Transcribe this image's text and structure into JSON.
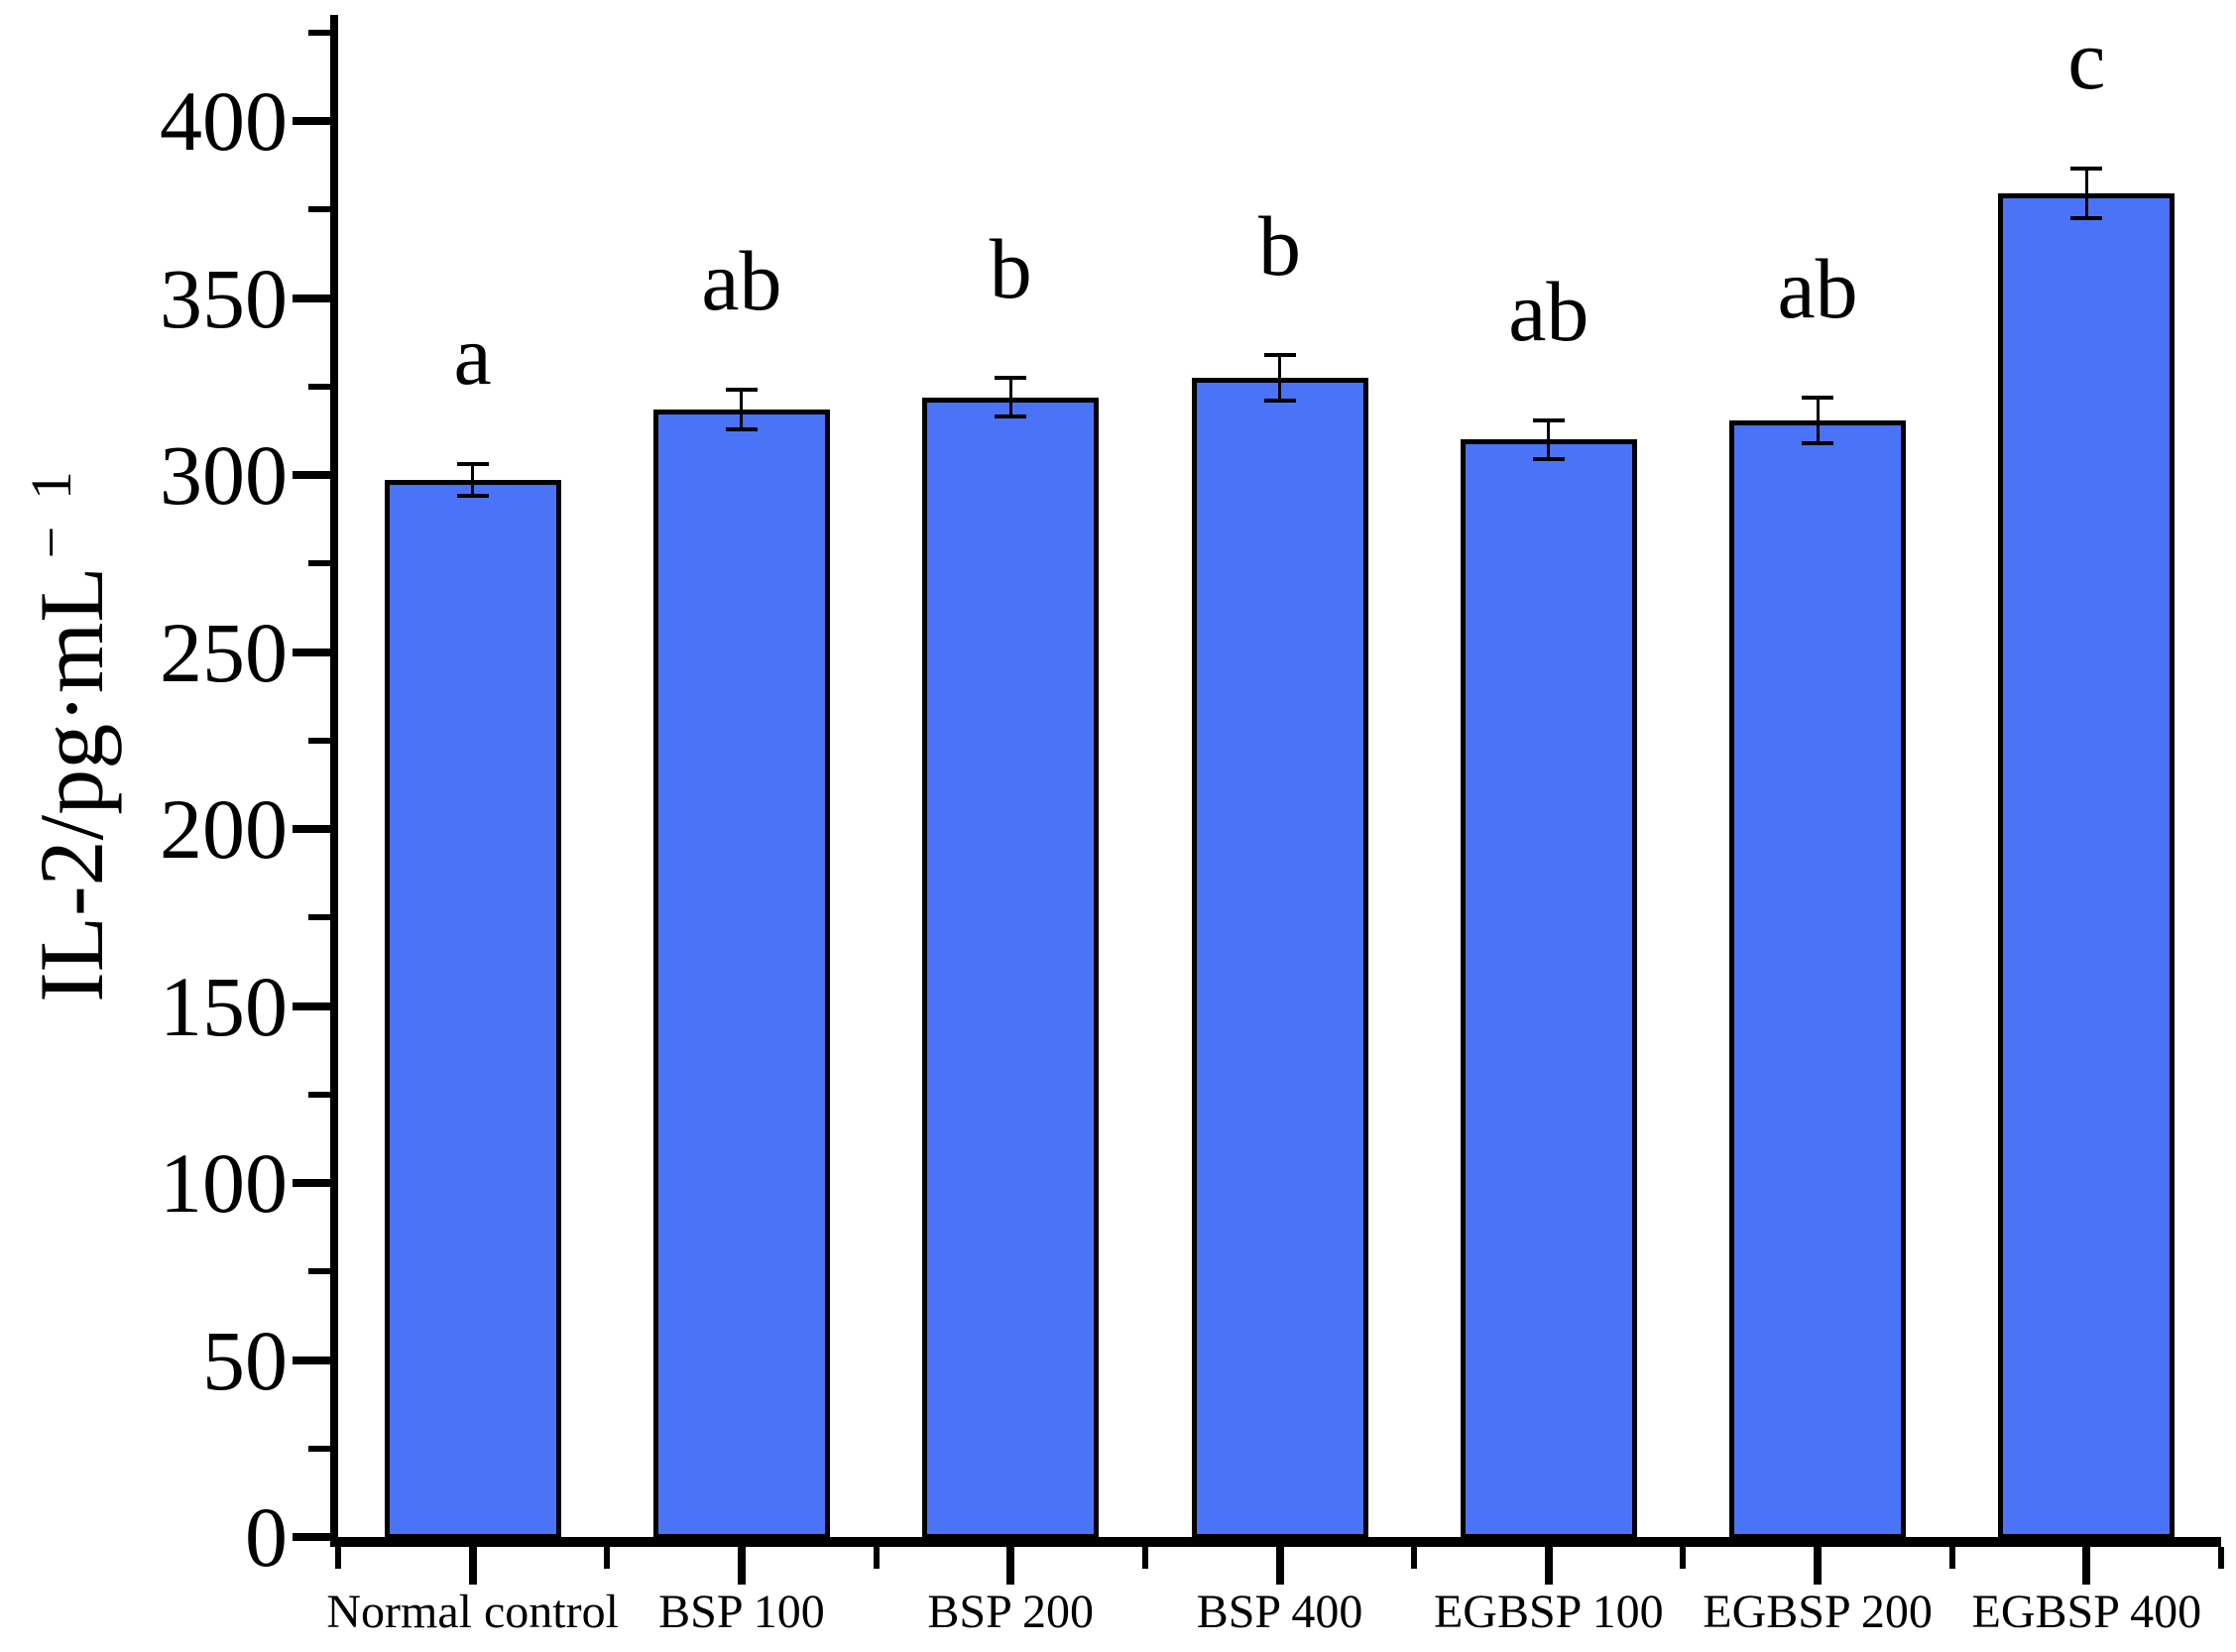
{
  "chart_data": {
    "type": "bar",
    "title": "",
    "ylabel": "IL-2/pg·mL⁻¹",
    "ylabel_base": "IL-2/pg·mL",
    "ylabel_sup": "− 1",
    "xlabel": "",
    "categories": [
      "Normal control",
      "BSP 100",
      "BSP 200",
      "BSP 400",
      "EGBSP 100",
      "EGBSP 200",
      "EGBSP 400"
    ],
    "values": [
      298.5,
      318.5,
      322,
      327.5,
      310,
      315.5,
      379.5
    ],
    "errors": [
      4.5,
      5.5,
      5.5,
      6.5,
      5.5,
      6.5,
      7
    ],
    "sig_letters": [
      "a",
      "ab",
      "b",
      "b",
      "ab",
      "ab",
      "c"
    ],
    "yticks": [
      0,
      50,
      100,
      150,
      200,
      250,
      300,
      350,
      400
    ],
    "ytick_labels": [
      "0",
      "50",
      "100",
      "150",
      "200",
      "250",
      "300",
      "350",
      "400"
    ],
    "minor_ytick_step": 25,
    "ylim": [
      0,
      430
    ],
    "grid": false,
    "legend": null,
    "bar_color": "#4b73f7",
    "bar_border_color": "#000000",
    "axis_color": "#000000",
    "error_bar_color": "#000000"
  }
}
